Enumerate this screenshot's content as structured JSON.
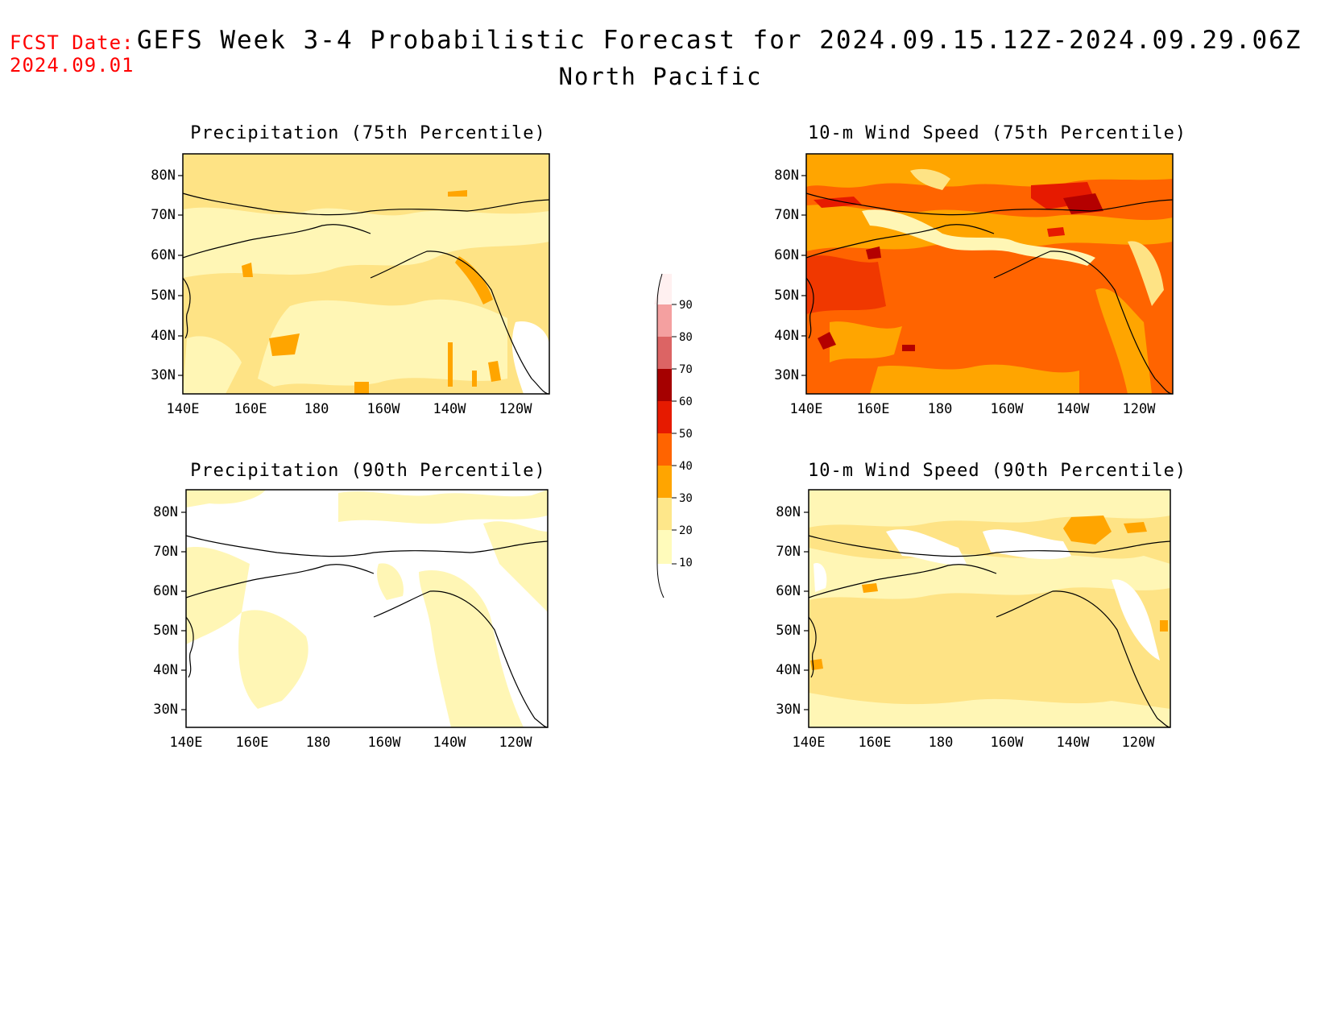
{
  "header": {
    "fcst_label": "FCST Date:",
    "fcst_date": "2024.09.01",
    "title": "GEFS Week 3-4 Probabilistic Forecast for 2024.09.15.12Z-2024.09.29.06Z",
    "subtitle": "North Pacific"
  },
  "panels": [
    {
      "title": "Precipitation (75th Percentile)",
      "field": "precip",
      "percentile": 75
    },
    {
      "title": "10-m Wind Speed (75th Percentile)",
      "field": "wind",
      "percentile": 75
    },
    {
      "title": "Precipitation (90th Percentile)",
      "field": "precip",
      "percentile": 90
    },
    {
      "title": "10-m Wind Speed (90th Percentile)",
      "field": "wind",
      "percentile": 90
    }
  ],
  "axes": {
    "lat_labels": [
      "80N",
      "70N",
      "60N",
      "50N",
      "40N",
      "30N"
    ],
    "lon_labels": [
      "140E",
      "160E",
      "180",
      "160W",
      "140W",
      "120W"
    ]
  },
  "colorbar": {
    "levels": [
      "10",
      "20",
      "30",
      "40",
      "50",
      "60",
      "70",
      "80",
      "90"
    ],
    "colors": [
      "#fffbbb",
      "#fee78a",
      "#ffa500",
      "#ff6400",
      "#e61a00",
      "#a50000",
      "#dc6464",
      "#f4a0a0",
      "#fff0f0"
    ]
  },
  "field_colors": {
    "white": "#ffffff",
    "c10_20": "#fff6b5",
    "c20_30": "#fee385",
    "c30_40": "#ffa500",
    "c40_50": "#ff6400",
    "c50_60": "#e61a00",
    "c60_70": "#b40000",
    "coast": "#000000"
  }
}
